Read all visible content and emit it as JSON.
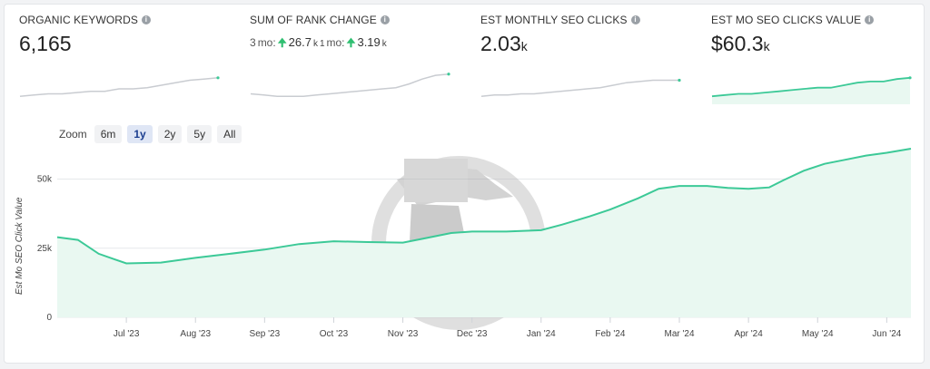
{
  "metrics": [
    {
      "title": "ORGANIC KEYWORDS",
      "value": "6,165",
      "suffix": ""
    },
    {
      "title": "SUM OF RANK CHANGE",
      "rank_change": {
        "prefix1": "3",
        "mo1": "mo:",
        "up1": "26.7",
        "unit1": "k",
        "sep": "1",
        "mo2": "mo:",
        "up2": "3.19",
        "unit2": "k"
      }
    },
    {
      "title": "EST MONTHLY SEO CLICKS",
      "value": "2.03",
      "suffix": "k"
    },
    {
      "title": "EST MO SEO CLICKS VALUE",
      "value": "$60.3",
      "suffix": "k"
    }
  ],
  "zoom": {
    "label": "Zoom",
    "options": [
      "6m",
      "1y",
      "2y",
      "5y",
      "All"
    ],
    "selected": "1y"
  },
  "colors": {
    "accent_line": "#3cc997",
    "accent_fill": "#e9f8f1",
    "spark_gray": "#c9ccd1",
    "up_arrow": "#2fbf71"
  },
  "icons": {
    "info": "info-circle-icon",
    "up_arrow": "arrow-up-icon",
    "watermark": "spy-logo-watermark-icon"
  },
  "chart_data": {
    "type": "area",
    "ylabel": "Est Mo SEO Click Value",
    "y_ticks": [
      "0",
      "25k",
      "50k"
    ],
    "ylim": [
      0,
      60000
    ],
    "x_ticks": [
      "Jul '23",
      "Aug '23",
      "Sep '23",
      "Oct '23",
      "Nov '23",
      "Dec '23",
      "Jan '24",
      "Feb '24",
      "Mar '24",
      "Apr '24",
      "May '24",
      "Jun '24"
    ],
    "x_tick_positions": [
      0.5,
      1.5,
      2.5,
      3.5,
      4.5,
      5.5,
      6.5,
      7.5,
      8.5,
      9.5,
      10.5,
      11.5
    ],
    "x": [
      -0.5,
      -0.2,
      0.1,
      0.5,
      1.0,
      1.5,
      2.0,
      2.5,
      3.0,
      3.5,
      4.0,
      4.5,
      4.8,
      5.2,
      5.5,
      6.0,
      6.5,
      6.8,
      7.2,
      7.5,
      7.9,
      8.2,
      8.5,
      8.9,
      9.2,
      9.5,
      9.8,
      10.0,
      10.3,
      10.6,
      10.9,
      11.2,
      11.5,
      11.85
    ],
    "y": [
      29000,
      28000,
      23000,
      19500,
      19800,
      21500,
      23000,
      24500,
      26500,
      27500,
      27200,
      27000,
      28500,
      30500,
      31000,
      31000,
      31500,
      33500,
      36500,
      39000,
      43000,
      46500,
      47500,
      47500,
      46800,
      46500,
      47000,
      49500,
      53000,
      55500,
      57000,
      58500,
      59500,
      61000
    ],
    "grid": "horizontal",
    "legend": "none"
  },
  "sparklines": [
    {
      "type": "line",
      "values": [
        20,
        21,
        22,
        22,
        23,
        24,
        24,
        26,
        26,
        27,
        29,
        31,
        33,
        34,
        35
      ]
    },
    {
      "type": "line",
      "values": [
        22,
        21,
        20,
        20,
        20,
        21,
        22,
        23,
        24,
        25,
        26,
        27,
        30,
        34,
        37,
        38
      ]
    },
    {
      "type": "line",
      "values": [
        20,
        21,
        21,
        22,
        22,
        23,
        24,
        25,
        26,
        27,
        29,
        31,
        32,
        33,
        33,
        33
      ]
    },
    {
      "type": "area",
      "values": [
        20,
        21,
        22,
        22,
        23,
        24,
        25,
        26,
        27,
        27,
        29,
        31,
        32,
        32,
        34,
        35
      ]
    }
  ]
}
